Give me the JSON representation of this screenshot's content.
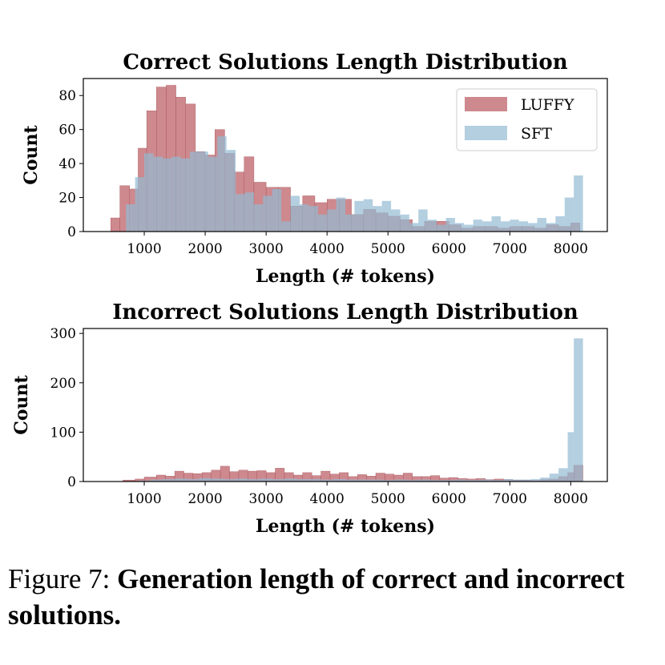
{
  "caption": {
    "prefix": "Figure 7:",
    "text": "Generation length of correct and incorrect solutions."
  },
  "chart_data": [
    {
      "type": "histogram",
      "title": "Correct Solutions Length Distribution",
      "xlabel": "Length (# tokens)",
      "ylabel": "Count",
      "xlim": [
        0,
        8600
      ],
      "ylim": [
        0,
        90
      ],
      "xticks": [
        1000,
        2000,
        3000,
        4000,
        5000,
        6000,
        7000,
        8000
      ],
      "yticks": [
        0,
        20,
        40,
        60,
        80
      ],
      "legend": "top-right",
      "grid": false,
      "series": [
        {
          "name": "LUFFY",
          "color": "#c0686e",
          "bins": [
            [
              450,
              600,
              8
            ],
            [
              600,
              760,
              27
            ],
            [
              760,
              900,
              25
            ],
            [
              900,
              1040,
              49
            ],
            [
              1040,
              1200,
              71
            ],
            [
              1200,
              1360,
              85
            ],
            [
              1360,
              1520,
              86
            ],
            [
              1520,
              1680,
              79
            ],
            [
              1680,
              1840,
              75
            ],
            [
              1840,
              2000,
              47
            ],
            [
              2000,
              2160,
              45
            ],
            [
              2160,
              2320,
              60
            ],
            [
              2320,
              2480,
              46
            ],
            [
              2480,
              2640,
              35
            ],
            [
              2640,
              2800,
              44
            ],
            [
              2800,
              3000,
              29
            ],
            [
              3000,
              3200,
              26
            ],
            [
              3200,
              3400,
              26
            ],
            [
              3400,
              3600,
              15
            ],
            [
              3600,
              3800,
              21
            ],
            [
              3800,
              4000,
              17
            ],
            [
              4000,
              4200,
              19
            ],
            [
              4200,
              4400,
              19
            ],
            [
              4400,
              4600,
              10
            ],
            [
              4600,
              4800,
              13
            ],
            [
              4800,
              5000,
              11
            ],
            [
              5000,
              5200,
              9
            ],
            [
              5200,
              5400,
              7
            ],
            [
              5400,
              5600,
              3
            ],
            [
              5600,
              5800,
              6
            ],
            [
              5800,
              6000,
              6
            ],
            [
              6000,
              6200,
              4
            ],
            [
              6200,
              6400,
              2
            ],
            [
              6400,
              6600,
              3
            ],
            [
              6600,
              6800,
              3
            ],
            [
              6800,
              7000,
              2
            ],
            [
              7000,
              7200,
              3
            ],
            [
              7200,
              7400,
              3
            ],
            [
              7400,
              7600,
              2
            ],
            [
              7600,
              7800,
              4
            ],
            [
              7800,
              8000,
              3
            ],
            [
              8000,
              8150,
              5
            ]
          ]
        },
        {
          "name": "SFT",
          "color": "#93bbd3",
          "bins": [
            [
              700,
              850,
              16
            ],
            [
              850,
              1000,
              32
            ],
            [
              1000,
              1150,
              46
            ],
            [
              1150,
              1300,
              44
            ],
            [
              1300,
              1450,
              43
            ],
            [
              1450,
              1600,
              44
            ],
            [
              1600,
              1750,
              43
            ],
            [
              1750,
              1900,
              47
            ],
            [
              1900,
              2050,
              47
            ],
            [
              2050,
              2200,
              44
            ],
            [
              2200,
              2350,
              56
            ],
            [
              2350,
              2500,
              48
            ],
            [
              2500,
              2650,
              22
            ],
            [
              2650,
              2800,
              23
            ],
            [
              2800,
              2950,
              16
            ],
            [
              2950,
              3100,
              21
            ],
            [
              3100,
              3250,
              25
            ],
            [
              3250,
              3400,
              6
            ],
            [
              3400,
              3550,
              21
            ],
            [
              3550,
              3700,
              16
            ],
            [
              3700,
              3850,
              15
            ],
            [
              3850,
              4000,
              10
            ],
            [
              4000,
              4150,
              13
            ],
            [
              4150,
              4300,
              20
            ],
            [
              4300,
              4450,
              10
            ],
            [
              4450,
              4600,
              18
            ],
            [
              4600,
              4750,
              19
            ],
            [
              4750,
              4900,
              15
            ],
            [
              4900,
              5050,
              18
            ],
            [
              5050,
              5200,
              13
            ],
            [
              5200,
              5350,
              10
            ],
            [
              5350,
              5500,
              5
            ],
            [
              5500,
              5650,
              13
            ],
            [
              5650,
              5800,
              7
            ],
            [
              5800,
              5950,
              4
            ],
            [
              5950,
              6100,
              8
            ],
            [
              6100,
              6250,
              5
            ],
            [
              6250,
              6400,
              4
            ],
            [
              6400,
              6550,
              7
            ],
            [
              6550,
              6700,
              6
            ],
            [
              6700,
              6850,
              9
            ],
            [
              6850,
              7000,
              6
            ],
            [
              7000,
              7150,
              7
            ],
            [
              7150,
              7300,
              6
            ],
            [
              7300,
              7450,
              5
            ],
            [
              7450,
              7600,
              8
            ],
            [
              7600,
              7750,
              5
            ],
            [
              7750,
              7900,
              9
            ],
            [
              7900,
              8050,
              20
            ],
            [
              8050,
              8200,
              33
            ]
          ]
        }
      ]
    },
    {
      "type": "histogram",
      "title": "Incorrect Solutions Length Distribution",
      "xlabel": "Length (# tokens)",
      "ylabel": "Count",
      "xlim": [
        0,
        8600
      ],
      "ylim": [
        0,
        310
      ],
      "xticks": [
        1000,
        2000,
        3000,
        4000,
        5000,
        6000,
        7000,
        8000
      ],
      "yticks": [
        0,
        100,
        200,
        300
      ],
      "grid": false,
      "series": [
        {
          "name": "LUFFY",
          "color": "#c0686e",
          "bins": [
            [
              650,
              850,
              3
            ],
            [
              850,
              1000,
              5
            ],
            [
              1000,
              1200,
              9
            ],
            [
              1200,
              1350,
              13
            ],
            [
              1350,
              1500,
              11
            ],
            [
              1500,
              1650,
              21
            ],
            [
              1650,
              1800,
              17
            ],
            [
              1800,
              1950,
              16
            ],
            [
              1950,
              2100,
              18
            ],
            [
              2100,
              2250,
              23
            ],
            [
              2250,
              2400,
              31
            ],
            [
              2400,
              2550,
              20
            ],
            [
              2550,
              2700,
              23
            ],
            [
              2700,
              2850,
              21
            ],
            [
              2850,
              3000,
              22
            ],
            [
              3000,
              3150,
              18
            ],
            [
              3150,
              3300,
              27
            ],
            [
              3300,
              3450,
              18
            ],
            [
              3450,
              3600,
              13
            ],
            [
              3600,
              3750,
              18
            ],
            [
              3750,
              3900,
              12
            ],
            [
              3900,
              4050,
              21
            ],
            [
              4050,
              4200,
              15
            ],
            [
              4200,
              4350,
              18
            ],
            [
              4350,
              4500,
              10
            ],
            [
              4500,
              4650,
              14
            ],
            [
              4650,
              4800,
              11
            ],
            [
              4800,
              4950,
              17
            ],
            [
              4950,
              5100,
              15
            ],
            [
              5100,
              5250,
              13
            ],
            [
              5250,
              5400,
              17
            ],
            [
              5400,
              5550,
              10
            ],
            [
              5550,
              5700,
              10
            ],
            [
              5700,
              5850,
              12
            ],
            [
              5850,
              6000,
              7
            ],
            [
              6000,
              6150,
              8
            ],
            [
              6150,
              6300,
              6
            ],
            [
              6300,
              6450,
              5
            ],
            [
              6450,
              6600,
              6
            ],
            [
              6600,
              6750,
              4
            ],
            [
              6750,
              6900,
              5
            ],
            [
              6900,
              7050,
              4
            ],
            [
              7050,
              7200,
              3
            ],
            [
              7200,
              7350,
              3
            ],
            [
              7350,
              7500,
              2
            ],
            [
              7500,
              7650,
              4
            ],
            [
              7650,
              7800,
              5
            ],
            [
              7800,
              7950,
              10
            ],
            [
              7950,
              8050,
              18
            ],
            [
              8050,
              8200,
              33
            ]
          ]
        },
        {
          "name": "SFT",
          "color": "#93bbd3",
          "bins": [
            [
              900,
              1100,
              2
            ],
            [
              1100,
              1300,
              4
            ],
            [
              1300,
              1500,
              5
            ],
            [
              1500,
              1700,
              6
            ],
            [
              1700,
              1900,
              5
            ],
            [
              1900,
              2100,
              7
            ],
            [
              2100,
              2300,
              6
            ],
            [
              2300,
              2500,
              5
            ],
            [
              2500,
              2700,
              6
            ],
            [
              2700,
              2900,
              5
            ],
            [
              2900,
              3100,
              6
            ],
            [
              3100,
              3300,
              5
            ],
            [
              3300,
              3500,
              6
            ],
            [
              3500,
              3700,
              5
            ],
            [
              3700,
              3900,
              5
            ],
            [
              3900,
              4100,
              4
            ],
            [
              4100,
              4300,
              5
            ],
            [
              4300,
              4500,
              4
            ],
            [
              4500,
              4700,
              4
            ],
            [
              4700,
              4900,
              4
            ],
            [
              4900,
              5100,
              3
            ],
            [
              5100,
              5300,
              4
            ],
            [
              5300,
              5500,
              3
            ],
            [
              5500,
              5700,
              4
            ],
            [
              5700,
              5900,
              3
            ],
            [
              5900,
              6100,
              3
            ],
            [
              6100,
              6300,
              4
            ],
            [
              6300,
              6500,
              3
            ],
            [
              6500,
              6700,
              4
            ],
            [
              6700,
              6900,
              3
            ],
            [
              6900,
              7050,
              5
            ],
            [
              7050,
              7200,
              4
            ],
            [
              7200,
              7350,
              4
            ],
            [
              7350,
              7500,
              5
            ],
            [
              7500,
              7650,
              8
            ],
            [
              7650,
              7800,
              16
            ],
            [
              7800,
              7950,
              27
            ],
            [
              7950,
              8050,
              100
            ],
            [
              8050,
              8200,
              290
            ]
          ]
        }
      ]
    }
  ]
}
